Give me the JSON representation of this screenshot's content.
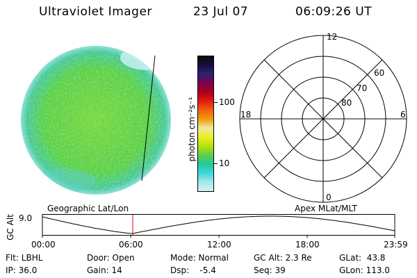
{
  "header": {
    "instrument": "Ultraviolet Imager",
    "date": "23 Jul 07",
    "time": "06:09:26 UT"
  },
  "colorbar": {
    "label": "photon cm⁻²s⁻¹",
    "ticks": [
      "100",
      "10"
    ],
    "colors": [
      "#0a0a0a",
      "#1a1040",
      "#302070",
      "#7a0050",
      "#b0001a",
      "#e01a10",
      "#f06010",
      "#f0a010",
      "#f0e8a0",
      "#e8f020",
      "#b0e010",
      "#60d040",
      "#20c8a0",
      "#40d8d8",
      "#a0e8e8",
      "#d8f0f0"
    ]
  },
  "polar_grid": {
    "mlt_labels": {
      "top": "12",
      "left": "18",
      "right": "6",
      "bottom": "0"
    },
    "lat_labels": [
      "60",
      "70",
      "80"
    ]
  },
  "orbit_panel": {
    "left_label": "Geographic Lat/Lon",
    "right_label": "Apex MLat/MLT",
    "y_label": "GC Alt",
    "y_tick": "9.0",
    "x_ticks": [
      "00:00",
      "06:00",
      "12:00",
      "18:00",
      "23:59"
    ],
    "marker_time": "06:09"
  },
  "footer": {
    "rows": [
      [
        "Flt: LBHL",
        "Door: Open",
        "Mode: Normal",
        "GC Alt: 2.3 Re",
        "GLat:  43.8"
      ],
      [
        "IP: 36.0",
        "Gain: 14",
        "Dsp:    -5.4",
        "Seq: 39",
        "GLon: 113.0"
      ]
    ]
  }
}
